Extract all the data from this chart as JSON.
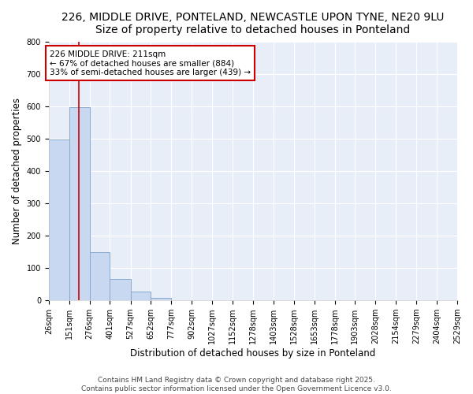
{
  "title_line1": "226, MIDDLE DRIVE, PONTELAND, NEWCASTLE UPON TYNE, NE20 9LU",
  "title_line2": "Size of property relative to detached houses in Ponteland",
  "xlabel": "Distribution of detached houses by size in Ponteland",
  "ylabel": "Number of detached properties",
  "bar_values": [
    497,
    599,
    150,
    65,
    28,
    8,
    0,
    0,
    0,
    0,
    0,
    0,
    0,
    0,
    0,
    0,
    0,
    0,
    0,
    0
  ],
  "bin_edges": [
    26,
    151,
    276,
    401,
    527,
    652,
    777,
    902,
    1027,
    1152,
    1278,
    1403,
    1528,
    1653,
    1778,
    1903,
    2028,
    2154,
    2279,
    2404,
    2529
  ],
  "bin_labels": [
    "26sqm",
    "151sqm",
    "276sqm",
    "401sqm",
    "527sqm",
    "652sqm",
    "777sqm",
    "902sqm",
    "1027sqm",
    "1152sqm",
    "1278sqm",
    "1403sqm",
    "1528sqm",
    "1653sqm",
    "1778sqm",
    "1903sqm",
    "2028sqm",
    "2154sqm",
    "2279sqm",
    "2404sqm",
    "2529sqm"
  ],
  "property_size": 211,
  "annotation_line1": "226 MIDDLE DRIVE: 211sqm",
  "annotation_line2": "← 67% of detached houses are smaller (884)",
  "annotation_line3": "33% of semi-detached houses are larger (439) →",
  "red_line_color": "#cc0000",
  "bar_color": "#c8d8f0",
  "bar_edge_color": "#88aacc",
  "background_color": "#ffffff",
  "plot_bg_color": "#e8eef8",
  "annotation_box_color": "#ffffff",
  "annotation_box_edge": "#cc0000",
  "grid_color": "#ffffff",
  "ylim": [
    0,
    800
  ],
  "yticks": [
    0,
    100,
    200,
    300,
    400,
    500,
    600,
    700,
    800
  ],
  "footer_line1": "Contains HM Land Registry data © Crown copyright and database right 2025.",
  "footer_line2": "Contains public sector information licensed under the Open Government Licence v3.0.",
  "title_fontsize": 10,
  "subtitle_fontsize": 9.5,
  "axis_label_fontsize": 8.5,
  "tick_fontsize": 7,
  "annotation_fontsize": 7.5,
  "footer_fontsize": 6.5
}
